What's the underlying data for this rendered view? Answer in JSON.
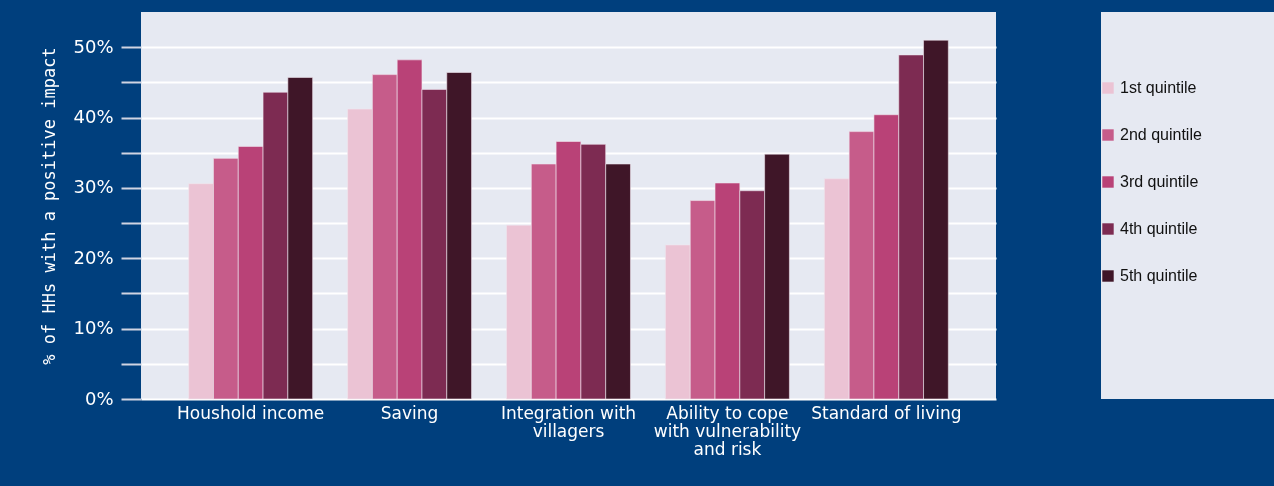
{
  "chart_data": {
    "type": "bar",
    "ylabel": "% of HHs with a positive impact",
    "categories": [
      "Houshold income",
      "Saving",
      "Integration with villagers",
      "Ability to cope with vulnerability and risk",
      "Standard of living"
    ],
    "series": [
      {
        "name": "1st quintile",
        "color": "#ebc3d4",
        "values": [
          30.6,
          41.2,
          24.7,
          21.9,
          31.3
        ]
      },
      {
        "name": "2nd quintile",
        "color": "#c65c8a",
        "values": [
          34.2,
          46.1,
          33.4,
          28.2,
          38.0
        ]
      },
      {
        "name": "3rd quintile",
        "color": "#b94277",
        "values": [
          35.9,
          48.2,
          36.6,
          30.7,
          40.4
        ]
      },
      {
        "name": "4th quintile",
        "color": "#7d2b52",
        "values": [
          43.6,
          44.0,
          36.2,
          29.6,
          48.9
        ]
      },
      {
        "name": "5th quintile",
        "color": "#3f1628",
        "values": [
          45.7,
          46.4,
          33.4,
          34.8,
          51.0
        ]
      }
    ],
    "ylim": [
      0,
      55
    ],
    "yticks": [
      {
        "value": 0,
        "label": "0%"
      },
      {
        "value": 5,
        "label": null
      },
      {
        "value": 10,
        "label": "10%"
      },
      {
        "value": 15,
        "label": null
      },
      {
        "value": 20,
        "label": "20%"
      },
      {
        "value": 25,
        "label": null
      },
      {
        "value": 30,
        "label": "30%"
      },
      {
        "value": 35,
        "label": null
      },
      {
        "value": 40,
        "label": "40%"
      },
      {
        "value": 45,
        "label": null
      },
      {
        "value": 50,
        "label": "50%"
      }
    ],
    "grid": true,
    "legend": "right"
  }
}
